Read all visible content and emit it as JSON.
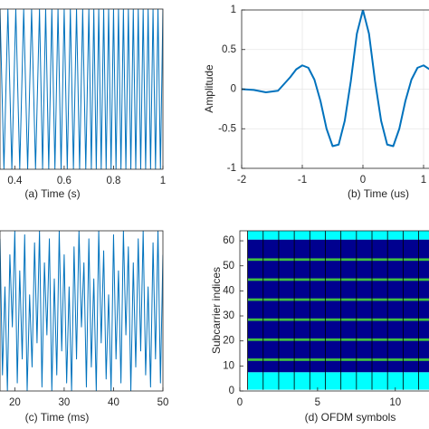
{
  "chart_data": [
    {
      "type": "line",
      "xlabel": "(a) Time (s)",
      "color": "#0072bd",
      "x": [
        0.34,
        0.356,
        0.372,
        0.388,
        0.404,
        0.42,
        0.436,
        0.452,
        0.468,
        0.484,
        0.5,
        0.5125,
        0.525,
        0.5375,
        0.55,
        0.5625,
        0.575,
        0.5875,
        0.6,
        0.6125,
        0.625,
        0.6375,
        0.65,
        0.6625,
        0.675,
        0.6875,
        0.7,
        0.71,
        0.72,
        0.73,
        0.74,
        0.75,
        0.76,
        0.77,
        0.78,
        0.79,
        0.8,
        0.81,
        0.82,
        0.83,
        0.84,
        0.85,
        0.86,
        0.87,
        0.88,
        0.89,
        0.9,
        0.91,
        0.92,
        0.93,
        0.94,
        0.95,
        0.96,
        0.97,
        0.98,
        0.99,
        1
      ],
      "values": [
        1,
        -1,
        1,
        -1,
        1,
        -1,
        1,
        -1,
        1,
        -1,
        1,
        -1,
        1,
        -1,
        1,
        -1,
        1,
        -1,
        1,
        -1,
        1,
        -1,
        1,
        -1,
        1,
        -1,
        1,
        -1,
        1,
        -1,
        1,
        -1,
        1,
        -1,
        1,
        -1,
        1,
        -1,
        1,
        -1,
        1,
        -1,
        1,
        -1,
        1,
        -1,
        1,
        -1,
        1,
        -1,
        1,
        -1,
        1,
        -1,
        1,
        -1,
        1
      ],
      "xlim": [
        0.34,
        1
      ],
      "ylim": [
        -1,
        1
      ],
      "xticks": [
        0.4,
        0.6,
        0.8,
        1
      ],
      "grid": false
    },
    {
      "type": "line",
      "xlabel": "(b) Time (us)",
      "ylabel": "Amplitude",
      "color": "#0072bd",
      "x": [
        -2,
        -1.8,
        -1.6,
        -1.4,
        -1.2,
        -1.1,
        -1,
        -0.9,
        -0.8,
        -0.7,
        -0.6,
        -0.5,
        -0.4,
        -0.3,
        -0.2,
        -0.1,
        0,
        0.1,
        0.2,
        0.3,
        0.4,
        0.5,
        0.6,
        0.7,
        0.8,
        0.9,
        1,
        1.1,
        1.2,
        1.4,
        1.6,
        1.8,
        2
      ],
      "values": [
        0,
        -0.01,
        -0.04,
        -0.02,
        0.15,
        0.25,
        0.3,
        0.27,
        0.12,
        -0.15,
        -0.5,
        -0.72,
        -0.7,
        -0.4,
        0.1,
        0.7,
        1,
        0.7,
        0.1,
        -0.4,
        -0.7,
        -0.72,
        -0.5,
        -0.15,
        0.12,
        0.27,
        0.3,
        0.25,
        0.15,
        -0.02,
        -0.04,
        -0.01,
        0
      ],
      "xlim": [
        -2,
        2
      ],
      "ylim": [
        -1,
        1
      ],
      "xticks": [
        -2,
        -1,
        0,
        1
      ],
      "yticks": [
        -1,
        -0.5,
        0,
        0.5,
        1
      ],
      "grid": true
    },
    {
      "type": "line",
      "xlabel": "(c) Time (ms)",
      "color": "#0072bd",
      "x": [
        17,
        17.5,
        18,
        18.5,
        19,
        19.5,
        20,
        20.5,
        21,
        21.5,
        22,
        22.5,
        23,
        23.5,
        24,
        24.5,
        25,
        25.5,
        26,
        26.5,
        27,
        27.5,
        28,
        28.5,
        29,
        29.5,
        30,
        30.5,
        31,
        31.5,
        32,
        32.5,
        33,
        33.5,
        34,
        34.5,
        35,
        35.5,
        36,
        36.5,
        37,
        37.5,
        38,
        38.5,
        39,
        39.5,
        40,
        40.5,
        41,
        41.5,
        42,
        42.5,
        43,
        43.5,
        44,
        44.5,
        45,
        45.5,
        46,
        46.5,
        47,
        47.5,
        48,
        48.5,
        49,
        49.5,
        50
      ],
      "values": [
        0.9,
        -0.8,
        0.3,
        -1,
        0.7,
        -0.2,
        1,
        -0.9,
        0.5,
        -0.6,
        0.95,
        -1,
        0.2,
        -0.7,
        0.85,
        -0.4,
        1,
        -0.95,
        0.6,
        -0.3,
        0.9,
        -1,
        0.4,
        -0.8,
        1,
        -0.5,
        0.7,
        -0.9,
        0.3,
        -1,
        0.8,
        -0.6,
        1,
        -0.2,
        0.6,
        -0.95,
        0.9,
        -0.7,
        0.4,
        -1,
        1,
        -0.4,
        0.75,
        -0.85,
        0.2,
        -1,
        0.95,
        -0.6,
        0.5,
        -0.9,
        1,
        -0.3,
        0.8,
        -1,
        0.6,
        -0.7,
        0.9,
        -0.5,
        1,
        -0.8,
        0.3,
        -0.95,
        0.85,
        -0.6,
        1,
        -0.9,
        0.7
      ],
      "xlim": [
        17,
        50
      ],
      "ylim": [
        -1,
        1
      ],
      "xticks": [
        20,
        30,
        40,
        50
      ],
      "grid": false
    },
    {
      "type": "heatmap",
      "xlabel": "(d) OFDM symbols",
      "ylabel": "Subcarrier indices",
      "x_edges": [
        0.5,
        1.5,
        2.5,
        3.5,
        4.5,
        5.5,
        6.5,
        7.5,
        8.5,
        9.5,
        10.5,
        11.5,
        12.5,
        13.5,
        14.5
      ],
      "rows": [
        {
          "y0": 0.5,
          "y1": 7.5,
          "color": "#00ffff"
        },
        {
          "y0": 7.5,
          "y1": 60.5,
          "color": "#00008f"
        },
        {
          "y0": 60.5,
          "y1": 64.5,
          "color": "#00ffff"
        },
        {
          "y0": 12,
          "y1": 13,
          "color": "#40c040"
        },
        {
          "y0": 20,
          "y1": 21,
          "color": "#40c040"
        },
        {
          "y0": 28,
          "y1": 29,
          "color": "#40c040"
        },
        {
          "y0": 36,
          "y1": 37,
          "color": "#40c040"
        },
        {
          "y0": 44,
          "y1": 45,
          "color": "#40c040"
        },
        {
          "y0": 52,
          "y1": 53,
          "color": "#40c040"
        }
      ],
      "xlim": [
        0,
        12.4
      ],
      "ylim": [
        0,
        64
      ],
      "xticks": [
        0,
        5,
        10
      ],
      "yticks": [
        0,
        10,
        20,
        30,
        40,
        50,
        60
      ]
    }
  ]
}
